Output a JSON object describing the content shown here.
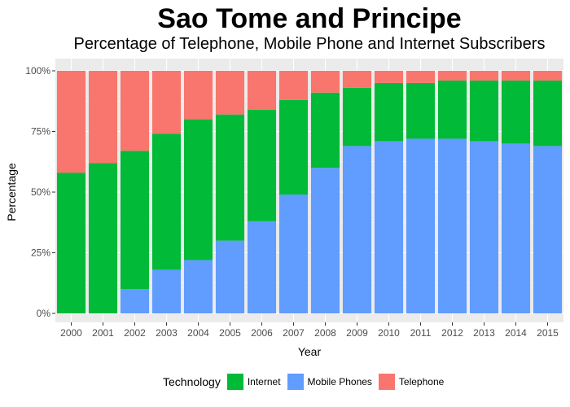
{
  "chart_data": {
    "type": "bar",
    "stacked": true,
    "title": "Sao Tome and Principe",
    "subtitle": "Percentage of Telephone, Mobile Phone and Internet Subscribers",
    "xlabel": "Year",
    "ylabel": "Percentage",
    "ylim": [
      0,
      1
    ],
    "yticks": [
      "0%",
      "25%",
      "50%",
      "75%",
      "100%"
    ],
    "grid": true,
    "legend_position": "bottom",
    "legend_title": "Technology",
    "categories": [
      "2000",
      "2001",
      "2002",
      "2003",
      "2004",
      "2005",
      "2006",
      "2007",
      "2008",
      "2009",
      "2010",
      "2011",
      "2012",
      "2013",
      "2014",
      "2015"
    ],
    "series": [
      {
        "name": "Mobile Phones",
        "color": "#619CFF",
        "values": [
          0,
          0,
          0.1,
          0.18,
          0.22,
          0.3,
          0.38,
          0.49,
          0.6,
          0.69,
          0.71,
          0.72,
          0.72,
          0.71,
          0.7,
          0.69
        ]
      },
      {
        "name": "Internet",
        "color": "#00BA38",
        "values": [
          0.58,
          0.62,
          0.57,
          0.56,
          0.58,
          0.52,
          0.46,
          0.39,
          0.31,
          0.24,
          0.24,
          0.23,
          0.24,
          0.25,
          0.26,
          0.27
        ]
      },
      {
        "name": "Telephone",
        "color": "#F8766D",
        "values": [
          0.42,
          0.38,
          0.33,
          0.26,
          0.2,
          0.18,
          0.16,
          0.12,
          0.09,
          0.07,
          0.05,
          0.05,
          0.04,
          0.04,
          0.04,
          0.04
        ]
      }
    ],
    "legend_order": [
      "Internet",
      "Mobile Phones",
      "Telephone"
    ]
  }
}
